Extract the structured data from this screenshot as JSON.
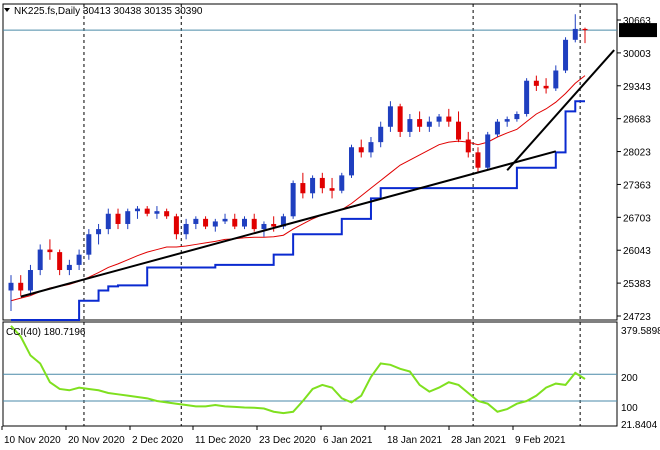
{
  "header": {
    "symbol_line": "NK225.fs,Daily  30413 30438 30135 30390",
    "cci_label": "CCI(40) 180.7196"
  },
  "colors": {
    "bull": "#1f3fbf",
    "bear": "#e00000",
    "ma": "#e00000",
    "kijun": "#0a2ad0",
    "trend": "#000000",
    "cci": "#7fe01f",
    "level": "#4a8aa8"
  },
  "chart_data": {
    "type": "line",
    "price_axis": {
      "ticks": [
        "30663",
        "30003",
        "29343",
        "28683",
        "28023",
        "27363",
        "26703",
        "26043",
        "25383",
        "24723"
      ],
      "current": "30390"
    },
    "x_labels": [
      "10 Nov 2020",
      "20 Nov 2020",
      "2 Dec 2020",
      "11 Dec 2020",
      "23 Dec 2020",
      "6 Jan 2021",
      "18 Jan 2021",
      "28 Jan 2021",
      "9 Feb 2021"
    ],
    "candles": [
      [
        25300,
        25600,
        24900,
        25450
      ],
      [
        25450,
        25600,
        25200,
        25300
      ],
      [
        25300,
        25800,
        25200,
        25700
      ],
      [
        25700,
        26200,
        25600,
        26100
      ],
      [
        26100,
        26300,
        25900,
        26050
      ],
      [
        26050,
        26100,
        25600,
        25700
      ],
      [
        25700,
        25900,
        25600,
        25800
      ],
      [
        25800,
        26100,
        25700,
        26000
      ],
      [
        26000,
        26500,
        25900,
        26400
      ],
      [
        26400,
        26600,
        26200,
        26500
      ],
      [
        26500,
        26900,
        26400,
        26800
      ],
      [
        26800,
        26900,
        26500,
        26600
      ],
      [
        26600,
        26900,
        26500,
        26850
      ],
      [
        26850,
        26950,
        26700,
        26900
      ],
      [
        26900,
        26950,
        26750,
        26800
      ],
      [
        26800,
        26950,
        26700,
        26850
      ],
      [
        26850,
        26900,
        26700,
        26750
      ],
      [
        26750,
        26800,
        26300,
        26400
      ],
      [
        26400,
        26700,
        26300,
        26600
      ],
      [
        26600,
        26750,
        26500,
        26700
      ],
      [
        26700,
        26750,
        26500,
        26550
      ],
      [
        26550,
        26700,
        26450,
        26650
      ],
      [
        26650,
        26800,
        26600,
        26700
      ],
      [
        26700,
        26800,
        26500,
        26550
      ],
      [
        26550,
        26750,
        26500,
        26700
      ],
      [
        26700,
        26800,
        26450,
        26500
      ],
      [
        26500,
        26650,
        26350,
        26600
      ],
      [
        26600,
        26750,
        26450,
        26550
      ],
      [
        26550,
        26800,
        26500,
        26750
      ],
      [
        26750,
        27450,
        26700,
        27400
      ],
      [
        27400,
        27600,
        27100,
        27200
      ],
      [
        27200,
        27550,
        27100,
        27500
      ],
      [
        27500,
        27600,
        27200,
        27300
      ],
      [
        27300,
        27500,
        27100,
        27250
      ],
      [
        27250,
        27600,
        27200,
        27550
      ],
      [
        27550,
        28150,
        27500,
        28100
      ],
      [
        28100,
        28250,
        27900,
        28000
      ],
      [
        28000,
        28300,
        27900,
        28200
      ],
      [
        28200,
        28600,
        28100,
        28500
      ],
      [
        28500,
        29000,
        28400,
        28900
      ],
      [
        28900,
        28950,
        28300,
        28400
      ],
      [
        28400,
        28750,
        28300,
        28650
      ],
      [
        28650,
        28800,
        28400,
        28500
      ],
      [
        28500,
        28700,
        28400,
        28600
      ],
      [
        28600,
        28750,
        28500,
        28700
      ],
      [
        28700,
        28850,
        28500,
        28600
      ],
      [
        28600,
        28800,
        28200,
        28250
      ],
      [
        28250,
        28400,
        27900,
        28000
      ],
      [
        28000,
        28100,
        27600,
        27700
      ],
      [
        27700,
        28400,
        27650,
        28350
      ],
      [
        28350,
        28650,
        28300,
        28600
      ],
      [
        28600,
        28700,
        28500,
        28650
      ],
      [
        28650,
        28800,
        28600,
        28750
      ],
      [
        28750,
        29450,
        28700,
        29400
      ],
      [
        29400,
        29500,
        29200,
        29300
      ],
      [
        29300,
        29450,
        29150,
        29250
      ],
      [
        29250,
        29700,
        29200,
        29600
      ],
      [
        29600,
        30250,
        29550,
        30200
      ],
      [
        30200,
        30700,
        30150,
        30413
      ],
      [
        30413,
        30438,
        30135,
        30390
      ]
    ],
    "moving_average": [
      25100,
      25150,
      25200,
      25280,
      25350,
      25380,
      25420,
      25480,
      25560,
      25650,
      25750,
      25820,
      25900,
      25980,
      26050,
      26100,
      26150,
      26150,
      26170,
      26200,
      26230,
      26260,
      26300,
      26310,
      26330,
      26340,
      26340,
      26350,
      26380,
      26500,
      26600,
      26700,
      26780,
      26830,
      26880,
      27000,
      27150,
      27300,
      27450,
      27600,
      27750,
      27850,
      27950,
      28050,
      28150,
      28200,
      28220,
      28200,
      28150,
      28200,
      28300,
      28380,
      28450,
      28600,
      28750,
      28850,
      28980,
      29150,
      29350,
      29500
    ],
    "kijun": [
      24723,
      24723,
      24723,
      24723,
      24723,
      24723,
      24723,
      25100,
      25100,
      25300,
      25380,
      25400,
      25400,
      25400,
      25750,
      25750,
      25750,
      25750,
      25750,
      25750,
      25750,
      25800,
      25800,
      25800,
      25800,
      25800,
      25800,
      26000,
      26000,
      26400,
      26400,
      26400,
      26400,
      26400,
      26700,
      26700,
      26700,
      27100,
      27300,
      27300,
      27300,
      27300,
      27300,
      27300,
      27300,
      27300,
      27300,
      27300,
      27300,
      27300,
      27300,
      27300,
      27700,
      27700,
      27700,
      27700,
      28000,
      28800,
      29000,
      29000
    ],
    "trendlines": [
      {
        "from": [
          1,
          25180
        ],
        "to": [
          56,
          28020
        ]
      },
      {
        "from": [
          51,
          27650
        ],
        "to": [
          62,
          30000
        ]
      }
    ],
    "price_range": [
      24723,
      30900
    ],
    "cci": {
      "axis_ticks": [
        "379.5898",
        "200",
        "100",
        "21.8404"
      ],
      "levels": [
        200,
        100
      ],
      "range": [
        21.84,
        379.59
      ],
      "values": [
        380,
        340,
        270,
        240,
        170,
        145,
        140,
        150,
        145,
        140,
        130,
        125,
        120,
        115,
        110,
        100,
        95,
        90,
        85,
        80,
        80,
        85,
        80,
        78,
        76,
        75,
        72,
        60,
        55,
        60,
        100,
        145,
        160,
        150,
        110,
        95,
        120,
        190,
        240,
        235,
        220,
        210,
        160,
        135,
        150,
        170,
        160,
        130,
        100,
        90,
        60,
        70,
        90,
        100,
        120,
        150,
        165,
        160,
        205,
        182
      ]
    },
    "vertical_dividers": [
      7,
      17,
      47,
      58
    ]
  }
}
